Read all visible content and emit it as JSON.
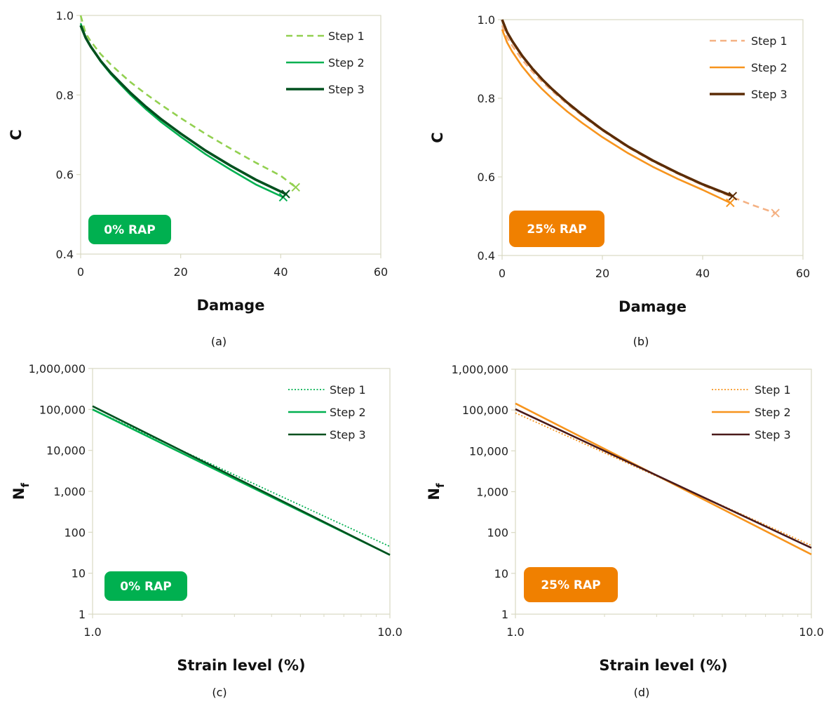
{
  "colors": {
    "green_light": "#92D050",
    "green_mid": "#00B050",
    "green_dark": "#00501E",
    "orange_light": "#F4B183",
    "orange_mid": "#F7941D",
    "brown_dark": "#5B2C06",
    "maroon_dark": "#4A1A1A",
    "badge_green": "#00B050",
    "badge_orange": "#F08000",
    "axis": "#D9D9C3"
  },
  "chart_data": [
    {
      "id": "a",
      "type": "line",
      "caption": "(a)",
      "badge": "0% RAP",
      "xlabel": "Damage",
      "ylabel": "C",
      "xlim": [
        0,
        60
      ],
      "ylim": [
        0.4,
        1.0
      ],
      "xticks": [
        "0",
        "20",
        "40",
        "60"
      ],
      "yticks": [
        "0.4",
        "0.6",
        "0.8",
        "1.0"
      ],
      "legend_position": "top-right",
      "series": [
        {
          "name": "Step 1",
          "style": "dashed",
          "color": "#92D050",
          "x": [
            0,
            1,
            2,
            4,
            6,
            8,
            10,
            13,
            16,
            20,
            25,
            30,
            35,
            40,
            43
          ],
          "y": [
            1.0,
            0.955,
            0.935,
            0.903,
            0.877,
            0.854,
            0.832,
            0.803,
            0.776,
            0.742,
            0.702,
            0.665,
            0.63,
            0.597,
            0.568
          ],
          "end_marker": [
            43,
            0.568
          ]
        },
        {
          "name": "Step 2",
          "style": "solid",
          "color": "#00B050",
          "x": [
            0,
            1,
            2,
            4,
            6,
            8,
            10,
            13,
            16,
            20,
            25,
            30,
            35,
            40.5
          ],
          "y": [
            0.98,
            0.945,
            0.922,
            0.884,
            0.853,
            0.826,
            0.8,
            0.765,
            0.733,
            0.695,
            0.651,
            0.612,
            0.575,
            0.543
          ],
          "end_marker": [
            40.5,
            0.543
          ]
        },
        {
          "name": "Step 3",
          "style": "solid-thick",
          "color": "#00501E",
          "x": [
            0,
            1,
            2,
            4,
            6,
            8,
            10,
            13,
            16,
            20,
            25,
            30,
            35,
            41
          ],
          "y": [
            0.975,
            0.944,
            0.922,
            0.886,
            0.856,
            0.83,
            0.805,
            0.771,
            0.74,
            0.703,
            0.66,
            0.622,
            0.587,
            0.551
          ],
          "end_marker": [
            41,
            0.551
          ]
        }
      ]
    },
    {
      "id": "b",
      "type": "line",
      "caption": "(b)",
      "badge": "25% RAP",
      "xlabel": "Damage",
      "ylabel": "C",
      "xlim": [
        0,
        60
      ],
      "ylim": [
        0.4,
        1.0
      ],
      "xticks": [
        "0",
        "20",
        "40",
        "60"
      ],
      "yticks": [
        "0.4",
        "0.6",
        "0.8",
        "1.0"
      ],
      "legend_position": "top-right",
      "series": [
        {
          "name": "Step 1",
          "style": "dashed",
          "color": "#F4B183",
          "x": [
            0,
            1,
            2,
            4,
            6,
            8,
            10,
            13,
            16,
            20,
            25,
            30,
            35,
            40,
            46,
            50,
            54.5
          ],
          "y": [
            0.985,
            0.955,
            0.934,
            0.898,
            0.868,
            0.842,
            0.818,
            0.785,
            0.755,
            0.718,
            0.676,
            0.64,
            0.608,
            0.579,
            0.548,
            0.528,
            0.508
          ],
          "end_marker": [
            54.5,
            0.508
          ]
        },
        {
          "name": "Step 2",
          "style": "solid",
          "color": "#F7941D",
          "x": [
            0,
            1,
            2,
            4,
            6,
            8,
            10,
            13,
            16,
            20,
            25,
            30,
            35,
            40,
            45.5
          ],
          "y": [
            0.975,
            0.942,
            0.919,
            0.881,
            0.85,
            0.823,
            0.799,
            0.766,
            0.737,
            0.701,
            0.661,
            0.626,
            0.595,
            0.567,
            0.534
          ],
          "end_marker": [
            45.5,
            0.534
          ]
        },
        {
          "name": "Step 3",
          "style": "solid-thick",
          "color": "#5B2C06",
          "x": [
            0,
            1,
            2,
            4,
            6,
            8,
            10,
            13,
            16,
            20,
            25,
            30,
            35,
            40,
            46
          ],
          "y": [
            1.0,
            0.968,
            0.946,
            0.908,
            0.876,
            0.848,
            0.823,
            0.789,
            0.758,
            0.72,
            0.678,
            0.642,
            0.61,
            0.581,
            0.551
          ],
          "end_marker": [
            46,
            0.551
          ]
        }
      ]
    },
    {
      "id": "c",
      "type": "line",
      "caption": "(c)",
      "badge": "0% RAP",
      "xlabel": "Strain level (%)",
      "ylabel": "N",
      "ylabel_sub": "f",
      "xscale": "log",
      "yscale": "log",
      "xlim": [
        1,
        10
      ],
      "ylim": [
        1,
        1000000
      ],
      "xticks": [
        "1.0",
        "10.0"
      ],
      "yticks": [
        "1",
        "10",
        "100",
        "1,000",
        "10,000",
        "100,000",
        "1,000,000"
      ],
      "legend_position": "top-right",
      "series": [
        {
          "name": "Step 1",
          "style": "dotted",
          "color": "#00B050",
          "x": [
            1,
            10
          ],
          "y": [
            100000,
            45
          ]
        },
        {
          "name": "Step 2",
          "style": "solid",
          "color": "#00B050",
          "x": [
            1,
            10
          ],
          "y": [
            100000,
            28
          ]
        },
        {
          "name": "Step 3",
          "style": "solid",
          "color": "#00501E",
          "x": [
            1,
            10
          ],
          "y": [
            120000,
            28
          ]
        }
      ]
    },
    {
      "id": "d",
      "type": "line",
      "caption": "(d)",
      "badge": "25% RAP",
      "xlabel": "Strain level (%)",
      "ylabel": "N",
      "ylabel_sub": "f",
      "xscale": "log",
      "yscale": "log",
      "xlim": [
        1,
        10
      ],
      "ylim": [
        1,
        1000000
      ],
      "xticks": [
        "1.0",
        "10.0"
      ],
      "yticks": [
        "1",
        "10",
        "100",
        "1,000",
        "10,000",
        "100,000",
        "1,000,000"
      ],
      "legend_position": "top-right",
      "series": [
        {
          "name": "Step 1",
          "style": "dotted",
          "color": "#F7941D",
          "x": [
            1,
            10
          ],
          "y": [
            85000,
            48
          ]
        },
        {
          "name": "Step 2",
          "style": "solid",
          "color": "#F7941D",
          "x": [
            1,
            10
          ],
          "y": [
            145000,
            29
          ]
        },
        {
          "name": "Step 3",
          "style": "solid",
          "color": "#4A1A1A",
          "x": [
            1,
            10
          ],
          "y": [
            105000,
            42
          ]
        }
      ]
    }
  ]
}
